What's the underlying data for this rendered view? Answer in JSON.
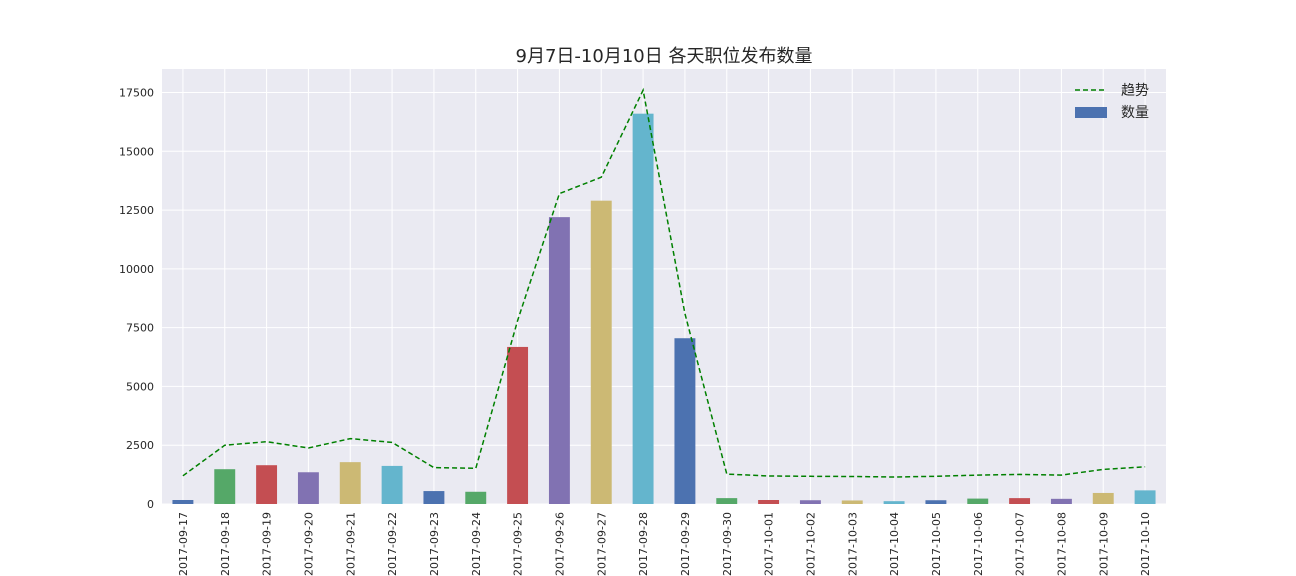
{
  "chart_data": {
    "type": "bar",
    "title": "9月7日-10月10日 各天职位发布数量",
    "xlabel": "",
    "ylabel": "",
    "ylim": [
      0,
      18500
    ],
    "yticks": [
      "0",
      "2500",
      "5000",
      "7500",
      "10000",
      "12500",
      "15000",
      "17500"
    ],
    "grid": true,
    "legend_position": "top-right",
    "categories": [
      "2017-09-17",
      "2017-09-18",
      "2017-09-19",
      "2017-09-20",
      "2017-09-21",
      "2017-09-22",
      "2017-09-23",
      "2017-09-24",
      "2017-09-25",
      "2017-09-26",
      "2017-09-27",
      "2017-09-28",
      "2017-09-29",
      "2017-09-30",
      "2017-10-01",
      "2017-10-02",
      "2017-10-03",
      "2017-10-04",
      "2017-10-05",
      "2017-10-06",
      "2017-10-07",
      "2017-10-08",
      "2017-10-09",
      "2017-10-10"
    ],
    "series": [
      {
        "name": "数量",
        "kind": "bar",
        "values": [
          170,
          1480,
          1650,
          1350,
          1780,
          1620,
          550,
          520,
          6680,
          12200,
          12900,
          16600,
          7050,
          250,
          170,
          160,
          150,
          120,
          160,
          230,
          250,
          220,
          470,
          580
        ]
      },
      {
        "name": "趋势",
        "kind": "line",
        "style": "dashed",
        "color": "#008000",
        "values": [
          1200,
          2500,
          2650,
          2380,
          2780,
          2620,
          1550,
          1520,
          7800,
          13200,
          13900,
          17600,
          8100,
          1270,
          1190,
          1180,
          1170,
          1150,
          1180,
          1230,
          1260,
          1230,
          1470,
          1580
        ]
      }
    ],
    "palette": [
      "#4c72b0",
      "#55a868",
      "#c44e52",
      "#8172b2",
      "#ccb974",
      "#64b5cd"
    ],
    "background": "#eaeaf2",
    "grid_color": "#ffffff"
  }
}
